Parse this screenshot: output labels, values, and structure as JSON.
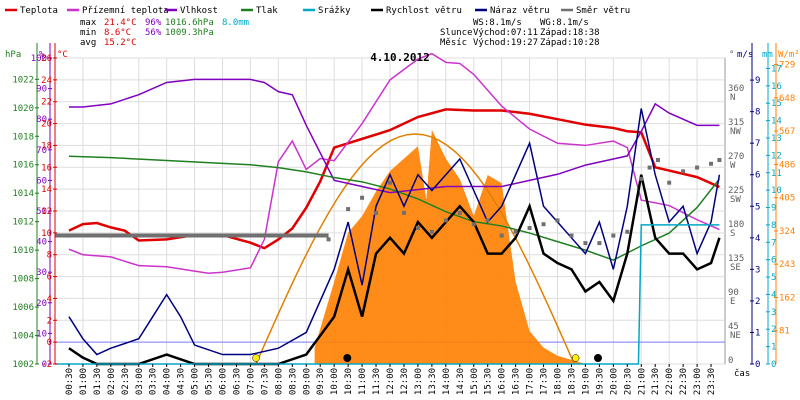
{
  "chart_data": {
    "type": "line",
    "title": "4.10.2012",
    "legend": [
      {
        "name": "Teplota",
        "color": "#e00000"
      },
      {
        "name": "Přízemní teplota",
        "color": "#cc33cc"
      },
      {
        "name": "Vlhkost",
        "color": "#8000c0"
      },
      {
        "name": "Tlak",
        "color": "#208020"
      },
      {
        "name": "Srážky",
        "color": "#00a8c8"
      },
      {
        "name": "Rychlost větru",
        "color": "#000000"
      },
      {
        "name": "Náraz větru",
        "color": "#000080"
      },
      {
        "name": "Směr větru",
        "color": "#707070"
      }
    ],
    "stats": {
      "max": {
        "label": "max",
        "temp": "21.4°C",
        "hum": "96%",
        "press": "1016.6hPa",
        "rain": "8.0mm"
      },
      "min": {
        "label": "min",
        "temp": "8.6°C",
        "hum": "56%",
        "press": "1009.3hPa"
      },
      "avg": {
        "label": "avg",
        "temp": "15.2°C"
      }
    },
    "info": {
      "ws": "WS:8.1m/s",
      "wg": "WG:8.1m/s",
      "sun_label": "Slunce",
      "sun_rise": "Východ:07:11",
      "sun_set": "Západ:18:38",
      "moon_label": "Měsíc",
      "moon_rise": "Východ:19:27",
      "moon_set": "Západ:10:28"
    },
    "axes": {
      "hpa": {
        "unit": "hPa",
        "ticks": [
          1002,
          1004,
          1006,
          1008,
          1010,
          1012,
          1014,
          1016,
          1018,
          1020,
          1022
        ]
      },
      "pct": {
        "unit": "%",
        "ticks": [
          0,
          10,
          20,
          30,
          40,
          50,
          60,
          70,
          80,
          90,
          100
        ]
      },
      "temp": {
        "unit": "°C",
        "ticks": [
          -2,
          0,
          2,
          4,
          6,
          8,
          10,
          12,
          14,
          16,
          18,
          20,
          22,
          24,
          26
        ]
      },
      "dir": {
        "unit": "°",
        "ticks": [
          "0",
          "45\nNE",
          "90\nE",
          "135\nSE",
          "180\nS",
          "225\nSW",
          "270\nW",
          "315\nNW",
          "360\nN"
        ]
      },
      "ms": {
        "unit": "m/s",
        "ticks": [
          0,
          1,
          2,
          3,
          4,
          5,
          6,
          7,
          8,
          9
        ]
      },
      "mm": {
        "unit": "mm",
        "ticks": [
          0,
          1,
          2,
          3,
          4,
          5,
          6,
          7,
          8,
          9,
          10,
          11,
          12,
          13,
          14,
          15,
          16,
          17
        ]
      },
      "wm2": {
        "unit": "W/m²",
        "ticks": [
          81,
          162,
          243,
          324,
          405,
          486,
          567,
          648,
          729
        ]
      },
      "x": {
        "label": "čas",
        "ticks": [
          "00:30",
          "01:00",
          "01:30",
          "02:00",
          "02:30",
          "03:00",
          "03:30",
          "04:00",
          "04:30",
          "05:00",
          "05:30",
          "06:00",
          "06:30",
          "07:00",
          "07:30",
          "08:00",
          "08:30",
          "09:00",
          "09:30",
          "10:00",
          "10:30",
          "11:00",
          "11:30",
          "12:00",
          "12:30",
          "13:00",
          "13:30",
          "14:00",
          "14:30",
          "15:00",
          "15:30",
          "16:00",
          "16:30",
          "17:00",
          "17:30",
          "18:00",
          "18:30",
          "19:00",
          "19:30",
          "20:00",
          "20:30",
          "21:00",
          "21:30",
          "22:00",
          "22:30",
          "23:00",
          "23:30"
        ]
      }
    },
    "series": [
      {
        "name": "Teplota",
        "axis": "temp",
        "color": "#e00000",
        "x": [
          0.5,
          1,
          1.5,
          2,
          2.5,
          3,
          4,
          5,
          6,
          7,
          7.5,
          8,
          8.5,
          9,
          9.5,
          10,
          11,
          12,
          13,
          14,
          15,
          16,
          17,
          18,
          19,
          20,
          20.5,
          21,
          21.5,
          22,
          23,
          23.8
        ],
        "values": [
          10.2,
          10.8,
          10.9,
          10.5,
          10.2,
          9.3,
          9.4,
          9.8,
          9.8,
          9.1,
          8.6,
          9.4,
          10.4,
          12.3,
          14.7,
          17.8,
          18.6,
          19.4,
          20.6,
          21.3,
          21.2,
          21.2,
          20.9,
          20.4,
          19.9,
          19.6,
          19.3,
          19.2,
          16,
          15.7,
          15.1,
          14.2
        ]
      },
      {
        "name": "Přízemní teplota",
        "axis": "temp",
        "color": "#cc33cc",
        "x": [
          0.5,
          1,
          2,
          3,
          4,
          5,
          5.5,
          6,
          7,
          7.5,
          8,
          8.5,
          9,
          9.5,
          10,
          11,
          12,
          13,
          13.5,
          14,
          14.5,
          15,
          16,
          17,
          18,
          19,
          20,
          20.5,
          21,
          22,
          23,
          23.8
        ],
        "values": [
          8.5,
          8,
          7.8,
          7,
          6.9,
          6.5,
          6.3,
          6.4,
          6.8,
          9.4,
          16.5,
          18.4,
          15.8,
          16.8,
          16.6,
          20,
          24,
          25.9,
          26.4,
          25.6,
          25.5,
          24.5,
          21.6,
          19.5,
          18.2,
          18,
          18.4,
          17.8,
          13,
          12.5,
          11.2,
          10.3
        ]
      },
      {
        "name": "Vlhkost",
        "axis": "pct",
        "color": "#8000c0",
        "x": [
          0.5,
          1,
          2,
          3,
          4,
          5,
          6,
          7,
          7.5,
          8,
          8.5,
          9,
          10,
          11,
          12,
          13,
          14,
          15,
          16,
          17,
          18,
          19,
          20,
          20.5,
          21,
          21.5,
          22,
          23,
          23.8
        ],
        "values": [
          84,
          84,
          85,
          88,
          92,
          93,
          93,
          93,
          92,
          89,
          88,
          78,
          60,
          58,
          56,
          57,
          58,
          58,
          58,
          60,
          62,
          65,
          67,
          68,
          76,
          85,
          82,
          78,
          78
        ]
      },
      {
        "name": "Tlak",
        "axis": "hpa",
        "color": "#208020",
        "x": [
          0.5,
          2,
          4,
          6,
          7,
          8,
          9,
          10,
          11,
          12,
          13,
          14,
          15,
          16,
          17,
          18,
          19,
          20,
          21,
          22,
          23,
          23.8
        ],
        "values": [
          1016.6,
          1016.5,
          1016.3,
          1016.1,
          1016,
          1015.8,
          1015.5,
          1015.1,
          1014.8,
          1014.3,
          1013.6,
          1012.7,
          1012,
          1011.7,
          1011.2,
          1010.6,
          1010,
          1009.3,
          1010.3,
          1011.2,
          1013,
          1015
        ]
      },
      {
        "name": "Rychlost větru",
        "axis": "ms",
        "color": "#000000",
        "x": [
          0.5,
          1,
          1.5,
          2,
          3,
          4,
          5,
          6,
          7,
          8,
          9,
          10,
          10.5,
          11,
          11.5,
          12,
          12.5,
          13,
          13.5,
          14,
          14.5,
          15,
          15.5,
          16,
          16.5,
          17,
          17.5,
          18,
          18.5,
          19,
          19.5,
          20,
          20.5,
          21,
          21.5,
          22,
          22.5,
          23,
          23.5,
          23.8
        ],
        "values": [
          0.5,
          0.2,
          0,
          0,
          0,
          0.3,
          0,
          0,
          0,
          0,
          0.3,
          1.5,
          3,
          1.5,
          3.5,
          4,
          3.5,
          4.5,
          4,
          4.5,
          5,
          4.5,
          3.5,
          3.5,
          4,
          5,
          3.5,
          3.2,
          3,
          2.3,
          2.6,
          2,
          3.5,
          6,
          4,
          3.5,
          3.5,
          3,
          3.2,
          4
        ]
      },
      {
        "name": "Náraz větru",
        "axis": "ms",
        "color": "#000080",
        "x": [
          0.5,
          1,
          1.5,
          2,
          3,
          3.5,
          4,
          4.5,
          5,
          6,
          7,
          8,
          9,
          10,
          10.5,
          11,
          11.5,
          12,
          12.5,
          13,
          13.5,
          14,
          14.5,
          15,
          15.5,
          16,
          16.5,
          17,
          17.5,
          18,
          18.5,
          19,
          19.5,
          20,
          20.5,
          21,
          21.5,
          22,
          22.5,
          23,
          23.5,
          23.8
        ],
        "values": [
          1.5,
          0.8,
          0.3,
          0.5,
          0.8,
          1.5,
          2.2,
          1.5,
          0.6,
          0.3,
          0.3,
          0.5,
          1,
          3,
          4.5,
          2.5,
          5,
          6,
          5,
          6,
          5.5,
          6,
          6.5,
          5.5,
          4.5,
          5,
          6,
          7,
          5,
          4.5,
          4,
          3.5,
          4.5,
          3,
          5,
          8.1,
          6,
          4.5,
          5,
          3.5,
          4.5,
          6
        ]
      },
      {
        "name": "Směr větru",
        "axis": "dir",
        "type": "scatter",
        "color": "#707070",
        "x": [
          0.5,
          2,
          4,
          6,
          8,
          9,
          9.8,
          10.5,
          11,
          11.5,
          12,
          12.5,
          13,
          13.5,
          14,
          14.5,
          15,
          15.5,
          16,
          16.5,
          17,
          17.5,
          18,
          18.5,
          19,
          19.5,
          20,
          20.5,
          21,
          21.3,
          21.6,
          22,
          22.5,
          23,
          23.5,
          23.8
        ],
        "values": [
          170,
          170,
          170,
          170,
          170,
          170,
          165,
          205,
          220,
          200,
          240,
          200,
          180,
          175,
          190,
          200,
          185,
          190,
          170,
          175,
          180,
          185,
          190,
          170,
          160,
          160,
          170,
          175,
          245,
          260,
          270,
          240,
          255,
          260,
          265,
          270
        ]
      },
      {
        "name": "Srážky",
        "axis": "mm",
        "color": "#00a8c8",
        "x": [
          0,
          20.9,
          21,
          21.5,
          22,
          23,
          23.8
        ],
        "values": [
          0,
          0,
          8,
          8,
          8,
          8,
          8
        ]
      }
    ],
    "solar": {
      "name": "Sluneční záření",
      "axis": "wm2",
      "color": "#ff7f00",
      "x": [
        9.3,
        10,
        10.5,
        11,
        11.5,
        12,
        12.5,
        13,
        13.3,
        13.5,
        14,
        14.5,
        15,
        15.5,
        16,
        16.5,
        17,
        17.5,
        18,
        18.5,
        19
      ],
      "values": [
        40,
        200,
        320,
        360,
        420,
        470,
        500,
        530,
        400,
        570,
        500,
        450,
        360,
        460,
        440,
        200,
        80,
        40,
        20,
        10,
        0
      ]
    }
  }
}
